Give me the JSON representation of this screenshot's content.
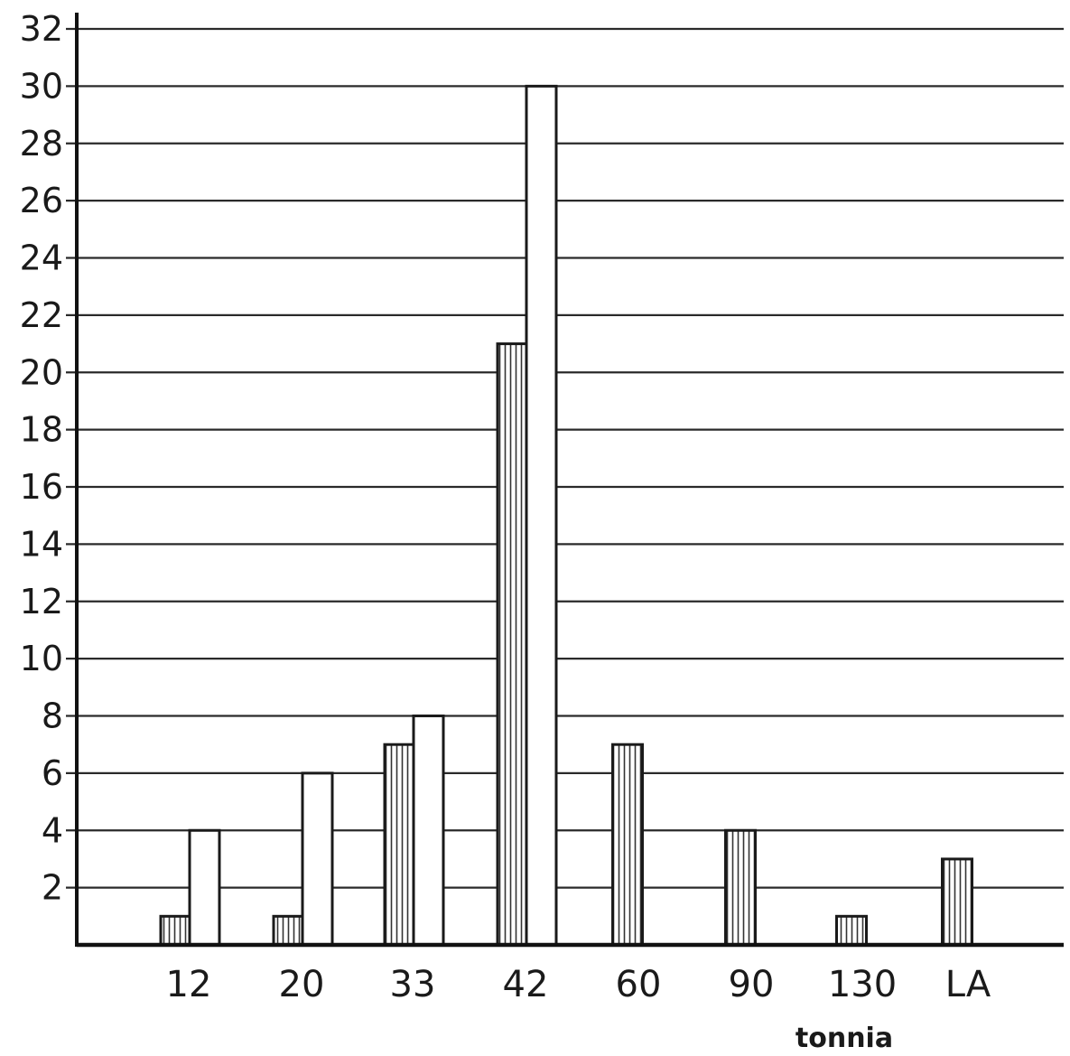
{
  "chart_data": {
    "type": "bar",
    "title": "",
    "xlabel": "tonnia",
    "ylabel": "",
    "ylim": [
      0,
      32
    ],
    "yticks": [
      "2",
      "4",
      "6",
      "8",
      "10",
      "12",
      "14",
      "16",
      "18",
      "20",
      "22",
      "24",
      "26",
      "28",
      "30",
      "32"
    ],
    "categories": [
      "12",
      "20",
      "33",
      "42",
      "60",
      "90",
      "130",
      "LA"
    ],
    "grid": true,
    "legend": "none",
    "series": [
      {
        "pattern": "hatched",
        "color": "#c8c8c8",
        "values": [
          1,
          1,
          7,
          21,
          7,
          4,
          1,
          3
        ]
      },
      {
        "pattern": "plain",
        "color": "#ffffff",
        "values": [
          4,
          6,
          8,
          30,
          null,
          null,
          null,
          null
        ]
      }
    ]
  }
}
